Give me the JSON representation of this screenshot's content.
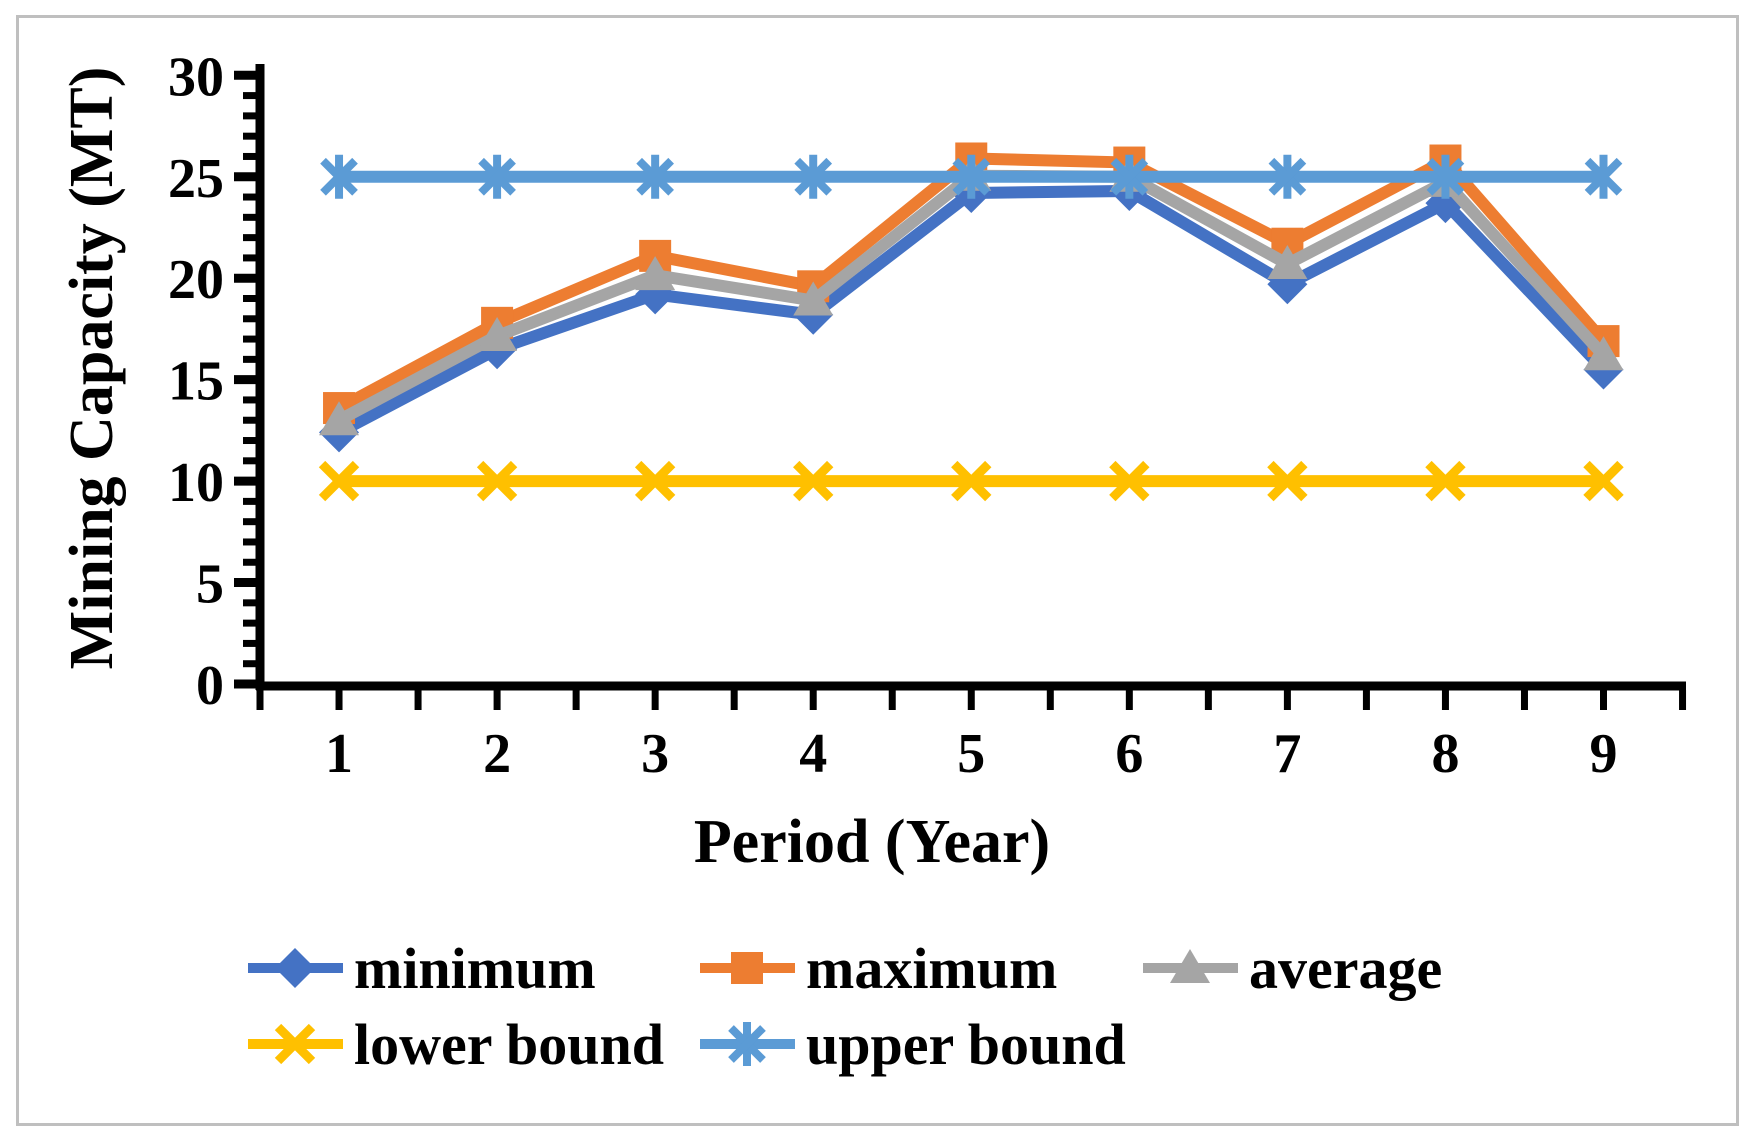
{
  "figure": {
    "background_color": "#ffffff",
    "border_color": "#bfbfbf"
  },
  "chart_data": {
    "type": "line",
    "title": "",
    "xlabel": "Period (Year)",
    "ylabel": "Mining Capacity (MT)",
    "categories": [
      1,
      2,
      3,
      4,
      5,
      6,
      7,
      8,
      9
    ],
    "y_ticks": [
      0,
      5,
      10,
      15,
      20,
      25,
      30
    ],
    "ylim": [
      0,
      30
    ],
    "minor_y_tick_interval": 1,
    "grid": false,
    "legend_position": "bottom-left",
    "axis_color": "#000000",
    "series": [
      {
        "name": "minimum",
        "marker": "diamond",
        "color": "#4472C4",
        "values": [
          12.4,
          16.5,
          19.2,
          18.2,
          24.2,
          24.3,
          19.7,
          23.7,
          15.5
        ]
      },
      {
        "name": "maximum",
        "marker": "square",
        "color": "#ED7D31",
        "values": [
          13.6,
          17.8,
          21.1,
          19.6,
          25.9,
          25.7,
          21.7,
          25.8,
          16.9
        ]
      },
      {
        "name": "average",
        "marker": "triangle",
        "color": "#A5A5A5",
        "values": [
          13.0,
          17.15,
          20.15,
          18.9,
          25.05,
          25.0,
          20.7,
          24.75,
          16.2
        ]
      },
      {
        "name": "lower bound",
        "marker": "x",
        "color": "#FFC000",
        "values": [
          10,
          10,
          10,
          10,
          10,
          10,
          10,
          10,
          10
        ]
      },
      {
        "name": "upper bound",
        "marker": "asterisk",
        "color": "#5B9BD5",
        "values": [
          25,
          25,
          25,
          25,
          25,
          25,
          25,
          25,
          25
        ]
      }
    ]
  }
}
